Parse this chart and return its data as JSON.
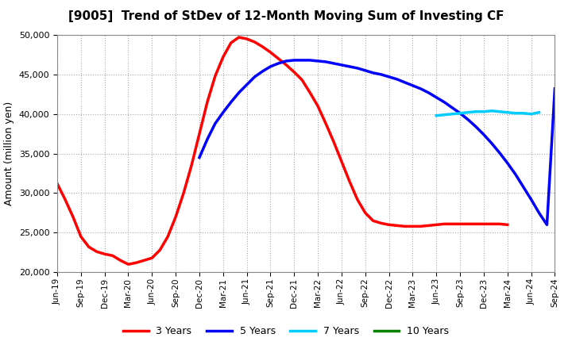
{
  "title": "[9005]  Trend of StDev of 12-Month Moving Sum of Investing CF",
  "ylabel": "Amount (million yen)",
  "ylim": [
    20000,
    50000
  ],
  "yticks": [
    20000,
    25000,
    30000,
    35000,
    40000,
    45000,
    50000
  ],
  "background_color": "#ffffff",
  "plot_bg_color": "#ffffff",
  "grid_color": "#aaaaaa",
  "series": {
    "3years": {
      "color": "#ff0000",
      "label": "3 Years",
      "x_start": 0,
      "x": [
        0,
        1,
        2,
        3,
        4,
        5,
        6,
        7,
        8,
        9,
        10,
        11,
        12,
        13,
        14,
        15,
        16,
        17,
        18,
        19,
        20,
        21,
        22,
        23,
        24,
        25,
        26,
        27,
        28,
        29,
        30,
        31,
        32,
        33,
        34,
        35,
        36,
        37,
        38,
        39,
        40,
        41,
        42,
        43,
        44,
        45,
        46,
        47,
        48,
        49,
        50,
        51,
        52,
        53,
        54,
        55,
        56,
        57
      ],
      "y": [
        31200,
        29200,
        27000,
        24500,
        23200,
        22600,
        22300,
        22100,
        21500,
        21000,
        21200,
        21500,
        21800,
        22800,
        24500,
        27000,
        30000,
        33500,
        37500,
        41500,
        44800,
        47200,
        49000,
        49700,
        49500,
        49100,
        48500,
        47800,
        47000,
        46200,
        45300,
        44300,
        42700,
        41000,
        38800,
        36500,
        34000,
        31500,
        29200,
        27500,
        26500,
        26200,
        26000,
        25900,
        25800,
        25800,
        25800,
        25900,
        26000,
        26100,
        26100,
        26100,
        26100,
        26100,
        26100,
        26100,
        26100,
        26000
      ]
    },
    "5years": {
      "color": "#0000ff",
      "label": "5 Years",
      "x": [
        18,
        19,
        20,
        21,
        22,
        23,
        24,
        25,
        26,
        27,
        28,
        29,
        30,
        31,
        32,
        33,
        34,
        35,
        36,
        37,
        38,
        39,
        40,
        41,
        42,
        43,
        44,
        45,
        46,
        47,
        48,
        49,
        50,
        51,
        52,
        53,
        54,
        55,
        56,
        57,
        58,
        59,
        60,
        61,
        62,
        63
      ],
      "y": [
        34500,
        36800,
        38800,
        40200,
        41500,
        42700,
        43700,
        44700,
        45400,
        46000,
        46400,
        46700,
        46800,
        46800,
        46800,
        46700,
        46600,
        46400,
        46200,
        46000,
        45800,
        45500,
        45200,
        45000,
        44700,
        44400,
        44000,
        43600,
        43200,
        42700,
        42100,
        41500,
        40800,
        40100,
        39300,
        38400,
        37400,
        36300,
        35100,
        33800,
        32400,
        30800,
        29200,
        27500,
        26000,
        43200
      ]
    },
    "7years": {
      "color": "#00ccff",
      "label": "7 Years",
      "x": [
        48,
        49,
        50,
        51,
        52,
        53,
        54,
        55,
        56,
        57,
        58,
        59,
        60,
        61
      ],
      "y": [
        39800,
        39900,
        40000,
        40100,
        40200,
        40300,
        40300,
        40400,
        40300,
        40200,
        40100,
        40100,
        40000,
        40200
      ]
    },
    "10years": {
      "color": "#008000",
      "label": "10 Years",
      "x": [],
      "y": []
    }
  },
  "xtick_labels": [
    "Jun-19",
    "Sep-19",
    "Dec-19",
    "Mar-20",
    "Jun-20",
    "Sep-20",
    "Dec-20",
    "Mar-21",
    "Jun-21",
    "Sep-21",
    "Dec-21",
    "Mar-22",
    "Jun-22",
    "Sep-22",
    "Dec-22",
    "Mar-23",
    "Jun-23",
    "Sep-23",
    "Dec-23",
    "Mar-24",
    "Jun-24",
    "Sep-24"
  ],
  "xtick_positions": [
    0,
    3,
    6,
    9,
    12,
    15,
    18,
    21,
    24,
    27,
    30,
    33,
    36,
    39,
    42,
    45,
    48,
    51,
    54,
    57,
    60,
    63
  ]
}
